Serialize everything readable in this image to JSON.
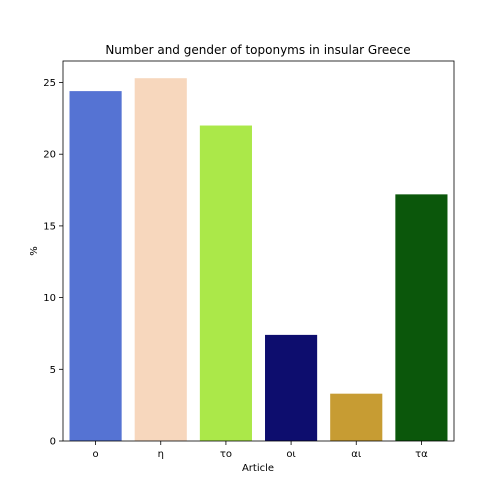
{
  "chart_data": {
    "type": "bar",
    "title": "Number and gender of toponyms in insular Greece",
    "xlabel": "Article",
    "ylabel": "%",
    "categories": [
      "ο",
      "η",
      "το",
      "οι",
      "αι",
      "τα"
    ],
    "values": [
      24.4,
      25.3,
      22.0,
      7.4,
      3.3,
      17.2
    ],
    "colors": [
      "#5573d3",
      "#f7d7bd",
      "#abe849",
      "#0d0d6e",
      "#c79c33",
      "#0b570b"
    ],
    "ylim": [
      0,
      26.5
    ],
    "yticks": [
      0,
      5,
      10,
      15,
      20,
      25
    ],
    "grid": false,
    "legend": "none"
  }
}
